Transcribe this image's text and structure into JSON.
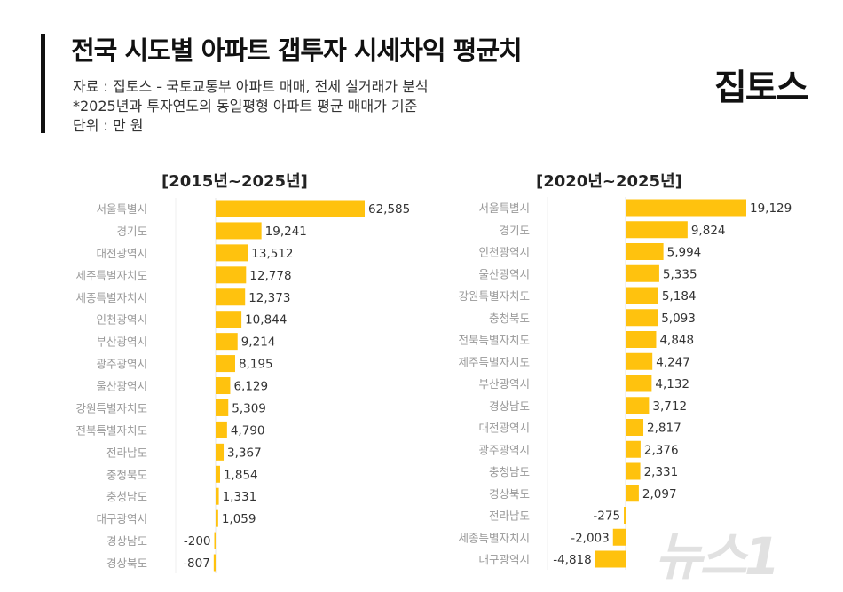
{
  "header": {
    "title": "전국 시도별 아파트 갭투자 시세차익 평균치",
    "source": "자료 : 집토스 - 국토교통부 아파트 매매, 전세 실거래가 분석",
    "note": "*2025년과 투자연도의 동일평형 아파트 평균 매매가 기준",
    "unit": "단위 : 만 원",
    "logo": "집토스"
  },
  "watermark": "뉴스1",
  "colors": {
    "bar": "#FFC20E",
    "label": "#999999",
    "value": "#333333"
  },
  "chart_data": [
    {
      "type": "bar",
      "orientation": "horizontal",
      "title": "[2015년~2025년]",
      "categories": [
        "서울특별시",
        "경기도",
        "대전광역시",
        "제주특별자치도",
        "세종특별자치시",
        "인천광역시",
        "부산광역시",
        "광주광역시",
        "울산광역시",
        "강원특별자치도",
        "전북특별자치도",
        "전라남도",
        "충청북도",
        "충청남도",
        "대구광역시",
        "경상남도",
        "경상북도"
      ],
      "values": [
        62585,
        19241,
        13512,
        12778,
        12373,
        10844,
        9214,
        8195,
        6129,
        5309,
        4790,
        3367,
        1854,
        1331,
        1059,
        -200,
        -807
      ],
      "value_labels": [
        "62,585",
        "19,241",
        "13,512",
        "12,778",
        "12,373",
        "10,844",
        "9,214",
        "8,195",
        "6,129",
        "5,309",
        "4,790",
        "3,367",
        "1,854",
        "1,331",
        "1,059",
        "-200",
        "-807"
      ]
    },
    {
      "type": "bar",
      "orientation": "horizontal",
      "title": "[2020년~2025년]",
      "categories": [
        "서울특별시",
        "경기도",
        "인천광역시",
        "울산광역시",
        "강원특별자치도",
        "충청북도",
        "전북특별자치도",
        "제주특별자치도",
        "부산광역시",
        "경상남도",
        "대전광역시",
        "광주광역시",
        "충청남도",
        "경상북도",
        "전라남도",
        "세종특별자치시",
        "대구광역시"
      ],
      "values": [
        19129,
        9824,
        5994,
        5335,
        5184,
        5093,
        4848,
        4247,
        4132,
        3712,
        2817,
        2376,
        2331,
        2097,
        -275,
        -2003,
        -4818
      ],
      "value_labels": [
        "19,129",
        "9,824",
        "5,994",
        "5,335",
        "5,184",
        "5,093",
        "4,848",
        "4,247",
        "4,132",
        "3,712",
        "2,817",
        "2,376",
        "2,331",
        "2,097",
        "-275",
        "-2,003",
        "-4,818"
      ]
    }
  ]
}
